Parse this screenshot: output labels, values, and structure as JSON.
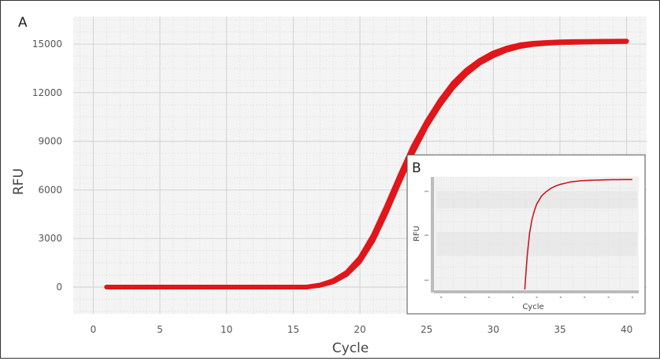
{
  "chart_data": [
    {
      "panel": "A",
      "type": "line",
      "xlabel": "Cycle",
      "ylabel": "RFU",
      "xlim": [
        -1.5,
        41.5
      ],
      "ylim": [
        -1650,
        16700
      ],
      "xticks": [
        0,
        5,
        10,
        15,
        20,
        25,
        30,
        35,
        40
      ],
      "yticks": [
        0,
        3000,
        6000,
        9000,
        12000,
        15000
      ],
      "grid": true,
      "series": [
        {
          "x": [
            1,
            2,
            3,
            4,
            5,
            6,
            7,
            8,
            9,
            10,
            11,
            12,
            13,
            14,
            15,
            16,
            17,
            18,
            19,
            20,
            21,
            22,
            23,
            24,
            25,
            26,
            27,
            28,
            29,
            30,
            31,
            32,
            33,
            34,
            35,
            36,
            37,
            38,
            39,
            40
          ],
          "values": [
            0,
            0,
            0,
            0,
            0,
            0,
            0,
            0,
            0,
            0,
            0,
            0,
            0,
            0,
            0,
            0,
            120,
            400,
            900,
            1800,
            3200,
            5000,
            6900,
            8700,
            10200,
            11500,
            12600,
            13400,
            14000,
            14450,
            14750,
            14950,
            15050,
            15100,
            15130,
            15150,
            15160,
            15170,
            15175,
            15180
          ],
          "color": "#e0161a"
        },
        {
          "x": [
            1,
            2,
            3,
            4,
            5,
            6,
            7,
            8,
            9,
            10,
            11,
            12,
            13,
            14,
            15,
            16,
            17,
            18,
            19,
            20,
            21,
            22,
            23,
            24,
            25,
            26,
            27,
            28,
            29,
            30,
            31,
            32,
            33,
            34,
            35,
            36,
            37,
            38,
            39,
            40
          ],
          "values": [
            0,
            0,
            0,
            0,
            0,
            0,
            0,
            0,
            0,
            0,
            0,
            0,
            0,
            0,
            0,
            0,
            80,
            300,
            750,
            1550,
            2850,
            4600,
            6500,
            8300,
            9900,
            11200,
            12300,
            13150,
            13800,
            14250,
            14600,
            14820,
            14950,
            15020,
            15060,
            15080,
            15100,
            15110,
            15120,
            15130
          ],
          "color": "#e0161a"
        }
      ]
    },
    {
      "panel": "B",
      "type": "line",
      "xlabel": "Cycle",
      "ylabel": "RFU",
      "grid": true,
      "series": [
        {
          "x": [
            17.5,
            18,
            18.5,
            19,
            19.5,
            20,
            21,
            22,
            23,
            24,
            25,
            26,
            27,
            28,
            29,
            30,
            31,
            32,
            33,
            34,
            35,
            36,
            37,
            38,
            39,
            40
          ],
          "values": [
            0,
            0.3,
            0.5,
            0.62,
            0.7,
            0.76,
            0.83,
            0.87,
            0.9,
            0.92,
            0.935,
            0.945,
            0.955,
            0.96,
            0.965,
            0.968,
            0.97,
            0.972,
            0.973,
            0.974,
            0.975,
            0.976,
            0.976,
            0.977,
            0.977,
            0.977
          ],
          "color": "#c8191f"
        }
      ]
    }
  ]
}
